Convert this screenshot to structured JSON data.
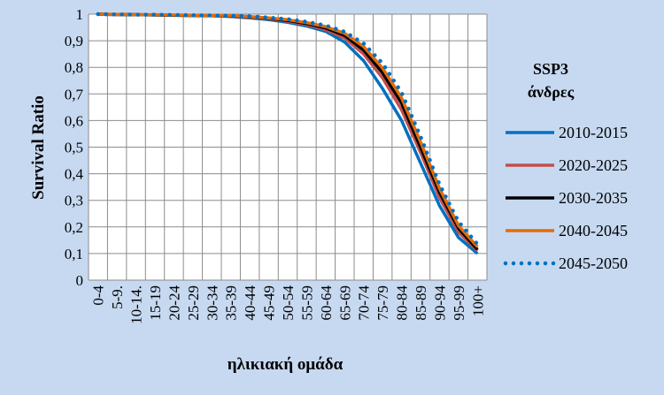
{
  "chart_data": {
    "type": "line",
    "xlabel": "ηλικιακή ομάδα",
    "ylabel": "Survival Ratio",
    "ylim": [
      0,
      1
    ],
    "yticks": [
      "0",
      "0,1",
      "0,2",
      "0,3",
      "0,4",
      "0,5",
      "0,6",
      "0,7",
      "0,8",
      "0,9",
      "1"
    ],
    "grid": true,
    "legend_position": "right",
    "legend_title": [
      "SSP3",
      "άνδρες"
    ],
    "categories": [
      "0-4",
      "5-9.",
      "10-14.",
      "15-19",
      "20-24",
      "25-29",
      "30-34",
      "35-39",
      "40-44",
      "45-49",
      "50-54",
      "55-59",
      "60-64",
      "65-69",
      "70-74",
      "75-79",
      "80-84",
      "85-89",
      "90-94",
      "95-99",
      "100+"
    ],
    "series": [
      {
        "name": "2010-2015",
        "color": "#0070c0",
        "style": "solid",
        "values": [
          1.0,
          0.998,
          0.998,
          0.997,
          0.996,
          0.995,
          0.994,
          0.991,
          0.986,
          0.979,
          0.969,
          0.955,
          0.935,
          0.895,
          0.825,
          0.72,
          0.6,
          0.44,
          0.28,
          0.16,
          0.1
        ]
      },
      {
        "name": "2020-2025",
        "color": "#c0504d",
        "style": "solid",
        "values": [
          1.0,
          0.998,
          0.998,
          0.997,
          0.996,
          0.995,
          0.994,
          0.992,
          0.988,
          0.982,
          0.973,
          0.96,
          0.942,
          0.91,
          0.85,
          0.76,
          0.64,
          0.48,
          0.31,
          0.18,
          0.11
        ]
      },
      {
        "name": "2030-2035",
        "color": "#000000",
        "style": "solid",
        "values": [
          1.0,
          0.999,
          0.998,
          0.997,
          0.996,
          0.995,
          0.994,
          0.993,
          0.99,
          0.984,
          0.976,
          0.964,
          0.948,
          0.92,
          0.865,
          0.78,
          0.665,
          0.5,
          0.33,
          0.195,
          0.115
        ]
      },
      {
        "name": "2040-2045",
        "color": "#e46c0a",
        "style": "solid",
        "values": [
          1.0,
          0.999,
          0.998,
          0.998,
          0.997,
          0.996,
          0.995,
          0.994,
          0.991,
          0.986,
          0.979,
          0.968,
          0.953,
          0.928,
          0.878,
          0.797,
          0.685,
          0.52,
          0.345,
          0.205,
          0.125
        ]
      },
      {
        "name": "2045-2050",
        "color": "#0070c0",
        "style": "dotted",
        "values": [
          1.0,
          0.999,
          0.998,
          0.998,
          0.997,
          0.996,
          0.995,
          0.994,
          0.992,
          0.987,
          0.981,
          0.971,
          0.957,
          0.934,
          0.89,
          0.815,
          0.705,
          0.54,
          0.36,
          0.22,
          0.135
        ]
      }
    ]
  }
}
